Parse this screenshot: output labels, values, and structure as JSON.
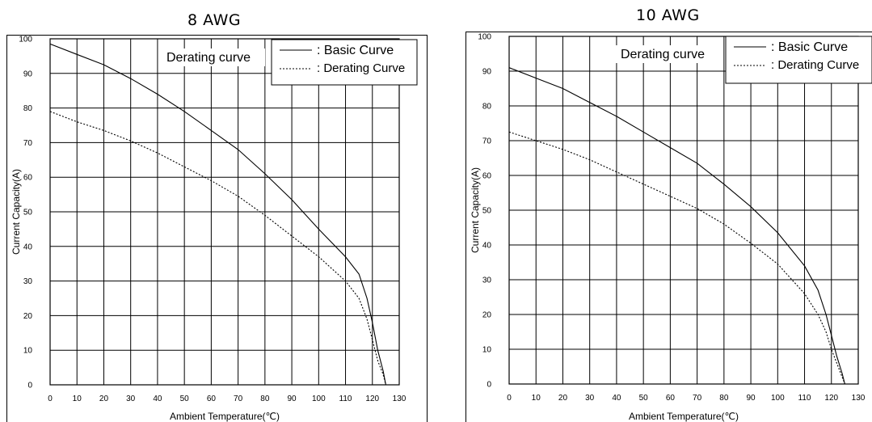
{
  "chart_data": [
    {
      "type": "line",
      "title": "8 AWG",
      "inner_title": "Derating curve",
      "xlabel": "Ambient Temperature(℃)",
      "ylabel": "Current Capacity(A)",
      "xlim": [
        0,
        130
      ],
      "ylim": [
        0,
        100
      ],
      "xticks": [
        "0",
        "10",
        "20",
        "30",
        "40",
        "50",
        "60",
        "70",
        "80",
        "90",
        "100",
        "110",
        "120",
        "130"
      ],
      "yticks": [
        "0",
        "10",
        "20",
        "30",
        "40",
        "50",
        "60",
        "70",
        "80",
        "90",
        "100"
      ],
      "grid": true,
      "legend_position": "top-right",
      "series": [
        {
          "name": ": Basic Curve",
          "style": "solid",
          "points": [
            [
              0,
              98.5
            ],
            [
              10,
              95.5
            ],
            [
              20,
              92.5
            ],
            [
              30,
              88.5
            ],
            [
              40,
              84
            ],
            [
              50,
              79
            ],
            [
              60,
              73.5
            ],
            [
              70,
              68
            ],
            [
              80,
              61
            ],
            [
              90,
              53.5
            ],
            [
              100,
              45
            ],
            [
              110,
              37
            ],
            [
              115,
              32
            ],
            [
              118,
              25
            ],
            [
              120,
              18
            ],
            [
              122,
              10
            ],
            [
              124,
              4
            ],
            [
              125,
              0
            ]
          ]
        },
        {
          "name": ": Derating Curve",
          "style": "dashed",
          "points": [
            [
              0,
              79
            ],
            [
              10,
              76
            ],
            [
              20,
              73.5
            ],
            [
              30,
              70.5
            ],
            [
              40,
              67
            ],
            [
              50,
              63
            ],
            [
              60,
              59
            ],
            [
              70,
              54.5
            ],
            [
              80,
              49
            ],
            [
              90,
              43
            ],
            [
              100,
              37
            ],
            [
              110,
              30
            ],
            [
              115,
              25
            ],
            [
              118,
              19
            ],
            [
              120,
              13
            ],
            [
              122,
              7
            ],
            [
              124,
              3
            ],
            [
              125,
              0
            ]
          ]
        }
      ]
    },
    {
      "type": "line",
      "title": "10 AWG",
      "inner_title": "Derating curve",
      "xlabel": "Ambient Temperature(℃)",
      "ylabel": "Current Capacity(A)",
      "xlim": [
        0,
        130
      ],
      "ylim": [
        0,
        100
      ],
      "xticks": [
        "0",
        "10",
        "20",
        "30",
        "40",
        "50",
        "60",
        "70",
        "80",
        "90",
        "100",
        "110",
        "120",
        "130"
      ],
      "yticks": [
        "0",
        "10",
        "20",
        "30",
        "40",
        "50",
        "60",
        "70",
        "80",
        "90",
        "100"
      ],
      "grid": true,
      "legend_position": "top-right",
      "series": [
        {
          "name": ": Basic Curve",
          "style": "solid",
          "points": [
            [
              0,
              91
            ],
            [
              10,
              88
            ],
            [
              20,
              85
            ],
            [
              30,
              81
            ],
            [
              40,
              77
            ],
            [
              50,
              72.5
            ],
            [
              60,
              68
            ],
            [
              70,
              63.5
            ],
            [
              80,
              57.5
            ],
            [
              90,
              51
            ],
            [
              100,
              43.5
            ],
            [
              110,
              34
            ],
            [
              115,
              27
            ],
            [
              118,
              20
            ],
            [
              120,
              14
            ],
            [
              122,
              8
            ],
            [
              124,
              3
            ],
            [
              125,
              0
            ]
          ]
        },
        {
          "name": ": Derating Curve",
          "style": "dashed",
          "points": [
            [
              0,
              72.5
            ],
            [
              10,
              70
            ],
            [
              20,
              67.5
            ],
            [
              30,
              64.5
            ],
            [
              40,
              61
            ],
            [
              50,
              57.5
            ],
            [
              60,
              54
            ],
            [
              70,
              50.5
            ],
            [
              80,
              46
            ],
            [
              90,
              40.5
            ],
            [
              100,
              34.5
            ],
            [
              110,
              26
            ],
            [
              115,
              20
            ],
            [
              118,
              15
            ],
            [
              120,
              10
            ],
            [
              122,
              6
            ],
            [
              124,
              2
            ],
            [
              125,
              0
            ]
          ]
        }
      ]
    }
  ]
}
